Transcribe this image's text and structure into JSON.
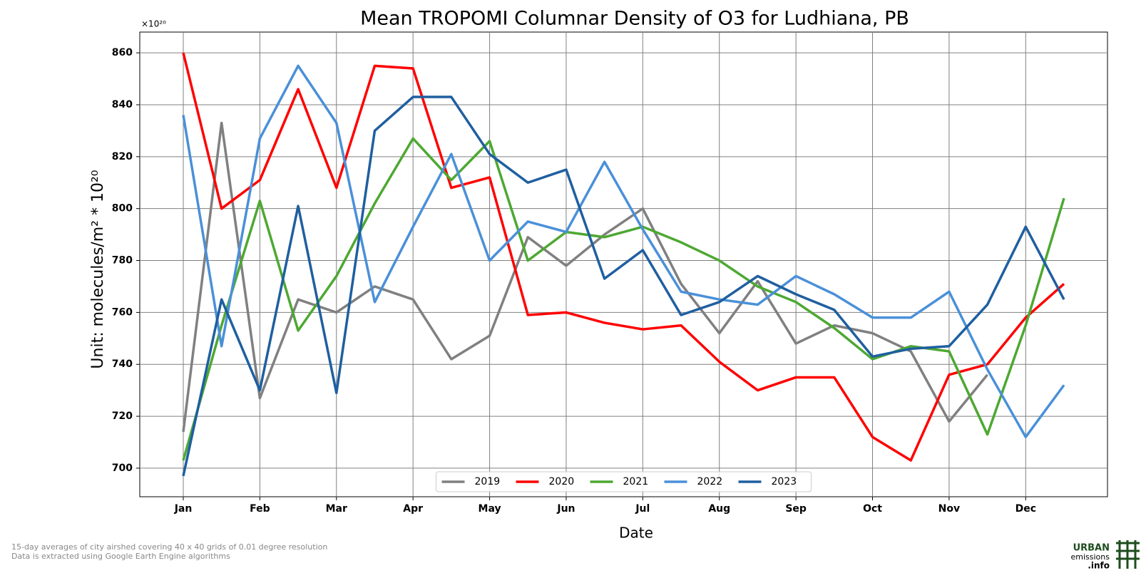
{
  "chart_data": {
    "type": "line",
    "title": "Mean TROPOMI Columnar Density of O3 for Ludhiana, PB",
    "y_label": "Unit: molecules/m² * 10²⁰",
    "y_offset_label": "×10²⁰",
    "x_label": "Date",
    "categories": [
      "Jan",
      null,
      "Feb",
      null,
      "Mar",
      null,
      "Apr",
      null,
      "May",
      null,
      "Jun",
      null,
      "Jul",
      null,
      "Aug",
      null,
      "Sep",
      null,
      "Oct",
      null,
      "Nov",
      null,
      "Dec",
      null
    ],
    "series": [
      {
        "name": "2019",
        "color": "#808080",
        "values": [
          714,
          833,
          727,
          765,
          760,
          770,
          765,
          742,
          751,
          789,
          778,
          790,
          800,
          771,
          752,
          772,
          748,
          755,
          752,
          745,
          718,
          736,
          null,
          null
        ]
      },
      {
        "name": "2020",
        "color": "#ff0000",
        "values": [
          860,
          800,
          811,
          846,
          808,
          855,
          854,
          808,
          812,
          759,
          760,
          756,
          753.5,
          755,
          741,
          730,
          735,
          735,
          712,
          703,
          736,
          740,
          758,
          771
        ]
      },
      {
        "name": "2021",
        "color": "#4da832",
        "values": [
          703,
          755,
          803,
          753,
          774,
          802,
          827,
          811,
          826,
          780,
          791,
          789,
          793,
          787,
          780,
          770,
          764,
          754,
          742,
          747,
          745,
          713,
          755,
          804
        ]
      },
      {
        "name": "2022",
        "color": "#4a90d9",
        "values": [
          836,
          747,
          827,
          855,
          833,
          764,
          793,
          821,
          780,
          795,
          791,
          818,
          792,
          768,
          765,
          763,
          774,
          767,
          758,
          758,
          768,
          738,
          712,
          732
        ]
      },
      {
        "name": "2023",
        "color": "#1f5fa0",
        "values": [
          697,
          765,
          730,
          801,
          729,
          830,
          843,
          843,
          821,
          810,
          815,
          773,
          784,
          759,
          764,
          774,
          767,
          761,
          743,
          746,
          747,
          763,
          793,
          765
        ]
      }
    ],
    "ylim": [
      689,
      868
    ],
    "yticks": [
      700,
      720,
      740,
      760,
      780,
      800,
      820,
      840,
      860
    ],
    "grid": true,
    "legend": "bottom",
    "notes": [
      "15-day averages of city airshed covering 40 x 40 grids of 0.01 degree resolution",
      "Data is extracted using Google Earth Engine algorithms"
    ],
    "logo": [
      "URBAN",
      "emissions",
      ".info"
    ]
  }
}
